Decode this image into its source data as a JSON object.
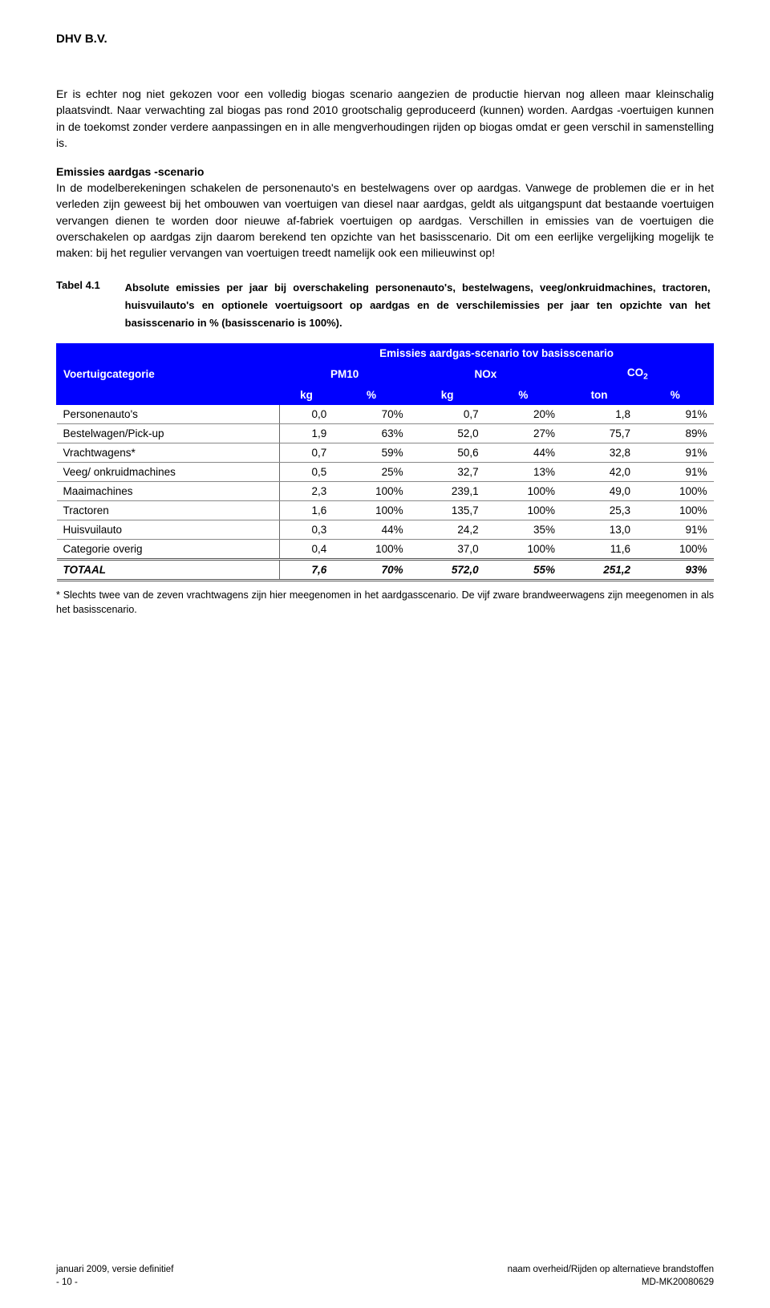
{
  "header": {
    "company": "DHV B.V."
  },
  "paragraphs": {
    "p1": "Er is echter nog niet gekozen voor een volledig biogas scenario aangezien de productie hiervan nog alleen maar kleinschalig plaatsvindt. Naar verwachting zal biogas pas rond 2010 grootschalig geproduceerd (kunnen) worden. Aardgas -voertuigen kunnen in de toekomst zonder verdere aanpassingen en in alle mengverhoudingen rijden op biogas omdat er geen verschil in samenstelling is.",
    "s2_title": "Emissies aardgas -scenario",
    "p2": "In de modelberekeningen schakelen de personenauto's en bestelwagens over op aardgas. Vanwege de problemen die er in het verleden zijn geweest bij het ombouwen van voertuigen van diesel naar aardgas, geldt als uitgangspunt dat bestaande voertuigen vervangen dienen te worden door nieuwe af-fabriek voertuigen op aardgas. Verschillen in emissies van de voertuigen die overschakelen op aardgas zijn daarom berekend ten opzichte van het basisscenario. Dit om een eerlijke vergelijking mogelijk te maken: bij het regulier vervangen van voertuigen treedt namelijk ook een milieuwinst op!"
  },
  "table_caption": {
    "label": "Tabel 4.1",
    "text": "Absolute emissies per jaar bij overschakeling personenauto's, bestelwagens, veeg/onkruidmachines, tractoren, huisvuilauto's en optionele voertuigsoort op aardgas en de verschilemissies per jaar ten opzichte van het basisscenario in % (basisscenario is 100%)."
  },
  "table": {
    "corner": "Voertuigcategorie",
    "top_header": "Emissies aardgas-scenario tov basisscenario",
    "groups": [
      "PM10",
      "NOx",
      "CO₂"
    ],
    "sub_headers": [
      "kg",
      "%",
      "kg",
      "%",
      "ton",
      "%"
    ],
    "rows": [
      {
        "label": "Personenauto's",
        "vals": [
          "0,0",
          "70%",
          "0,7",
          "20%",
          "1,8",
          "91%"
        ]
      },
      {
        "label": "Bestelwagen/Pick-up",
        "vals": [
          "1,9",
          "63%",
          "52,0",
          "27%",
          "75,7",
          "89%"
        ]
      },
      {
        "label": "Vrachtwagens*",
        "vals": [
          "0,7",
          "59%",
          "50,6",
          "44%",
          "32,8",
          "91%"
        ]
      },
      {
        "label": "Veeg/ onkruidmachines",
        "vals": [
          "0,5",
          "25%",
          "32,7",
          "13%",
          "42,0",
          "91%"
        ]
      },
      {
        "label": "Maaimachines",
        "vals": [
          "2,3",
          "100%",
          "239,1",
          "100%",
          "49,0",
          "100%"
        ]
      },
      {
        "label": "Tractoren",
        "vals": [
          "1,6",
          "100%",
          "135,7",
          "100%",
          "25,3",
          "100%"
        ]
      },
      {
        "label": "Huisvuilauto",
        "vals": [
          "0,3",
          "44%",
          "24,2",
          "35%",
          "13,0",
          "91%"
        ]
      },
      {
        "label": "Categorie overig",
        "vals": [
          "0,4",
          "100%",
          "37,0",
          "100%",
          "11,6",
          "100%"
        ]
      }
    ],
    "total": {
      "label": "TOTAAL",
      "vals": [
        "7,6",
        "70%",
        "572,0",
        "55%",
        "251,2",
        "93%"
      ]
    }
  },
  "footnote": "* Slechts twee van de zeven vrachtwagens zijn hier meegenomen in het aardgasscenario. De vijf zware brandweerwagens zijn meegenomen in als het basisscenario.",
  "footer": {
    "left1": "januari 2009, versie definitief",
    "left2": "- 10 -",
    "right1": "naam overheid/Rijden op alternatieve brandstoffen",
    "right2": "MD-MK20080629"
  }
}
